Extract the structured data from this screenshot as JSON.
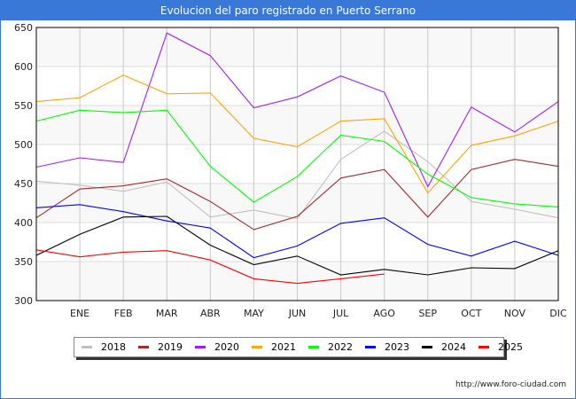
{
  "title": "Evolucion del paro registrado en Puerto Serrano",
  "source": "http://www.foro-ciudad.com",
  "chart_data": {
    "type": "line",
    "title": "Evolucion del paro registrado en Puerto Serrano",
    "xlabel": "",
    "ylabel": "",
    "categories": [
      "",
      "ENE",
      "FEB",
      "MAR",
      "ABR",
      "MAY",
      "JUN",
      "JUL",
      "AGO",
      "SEP",
      "OCT",
      "NOV",
      "DIC"
    ],
    "ylim": [
      300,
      650
    ],
    "yticks": [
      300,
      350,
      400,
      450,
      500,
      550,
      600,
      650
    ],
    "grid": true,
    "legend_position": "bottom",
    "series": [
      {
        "name": "2018",
        "color": "#c0c0c0",
        "values": [
          453,
          448,
          440,
          452,
          407,
          416,
          405,
          481,
          517,
          478,
          427,
          417,
          406
        ]
      },
      {
        "name": "2019",
        "color": "#a52a2a",
        "values": [
          406,
          443,
          447,
          456,
          427,
          391,
          408,
          457,
          468,
          407,
          468,
          481,
          472
        ]
      },
      {
        "name": "2020",
        "color": "#a020f0",
        "values": [
          471,
          483,
          477,
          643,
          614,
          547,
          561,
          588,
          567,
          446,
          548,
          516,
          555
        ]
      },
      {
        "name": "2021",
        "color": "#ffa500",
        "values": [
          555,
          560,
          589,
          565,
          566,
          508,
          497,
          530,
          533,
          438,
          499,
          511,
          530
        ]
      },
      {
        "name": "2022",
        "color": "#00ff00",
        "values": [
          530,
          544,
          541,
          544,
          472,
          426,
          459,
          512,
          504,
          462,
          432,
          424,
          420
        ]
      },
      {
        "name": "2023",
        "color": "#0000ff",
        "values": [
          419,
          423,
          414,
          402,
          393,
          355,
          370,
          399,
          406,
          372,
          357,
          376,
          358
        ]
      },
      {
        "name": "2024",
        "color": "#000000",
        "values": [
          358,
          385,
          407,
          408,
          371,
          346,
          357,
          333,
          340,
          333,
          342,
          341,
          364
        ]
      },
      {
        "name": "2025",
        "color": "#ff0000",
        "values": [
          365,
          356,
          362,
          364,
          352,
          328,
          322,
          328,
          334,
          null,
          null,
          null,
          null
        ]
      }
    ]
  }
}
